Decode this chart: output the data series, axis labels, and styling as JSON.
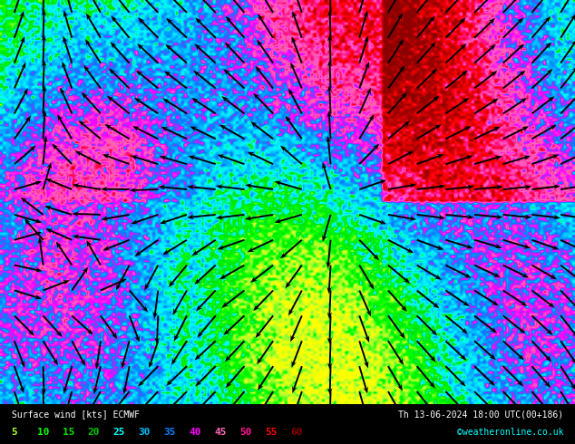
{
  "title_left": "Surface wind [kts] ECMWF",
  "title_right": "Th 13-06-2024 18:00 UTC(00+186)",
  "copyright": "©weatheronline.co.uk",
  "legend_values": [
    5,
    10,
    15,
    20,
    25,
    30,
    35,
    40,
    45,
    50,
    55,
    60
  ],
  "legend_colors": [
    "#adff2f",
    "#00ff00",
    "#00e400",
    "#00c800",
    "#00ffff",
    "#00bfff",
    "#0080ff",
    "#ff00ff",
    "#ff69b4",
    "#ff1493",
    "#ff0000",
    "#8b0000"
  ],
  "bg_color": "#000000",
  "bottom_bar_color": "#000000",
  "colormap_stops": [
    [
      0.0,
      "#ffff00"
    ],
    [
      0.08,
      "#adff2f"
    ],
    [
      0.17,
      "#00ff00"
    ],
    [
      0.25,
      "#00e400"
    ],
    [
      0.33,
      "#00ffff"
    ],
    [
      0.42,
      "#00bfff"
    ],
    [
      0.5,
      "#0080ff"
    ],
    [
      0.58,
      "#ff00ff"
    ],
    [
      0.67,
      "#ff69b4"
    ],
    [
      0.75,
      "#ff1493"
    ],
    [
      0.83,
      "#ff0000"
    ],
    [
      1.0,
      "#8b0000"
    ]
  ],
  "figsize": [
    6.34,
    4.9
  ],
  "dpi": 100
}
